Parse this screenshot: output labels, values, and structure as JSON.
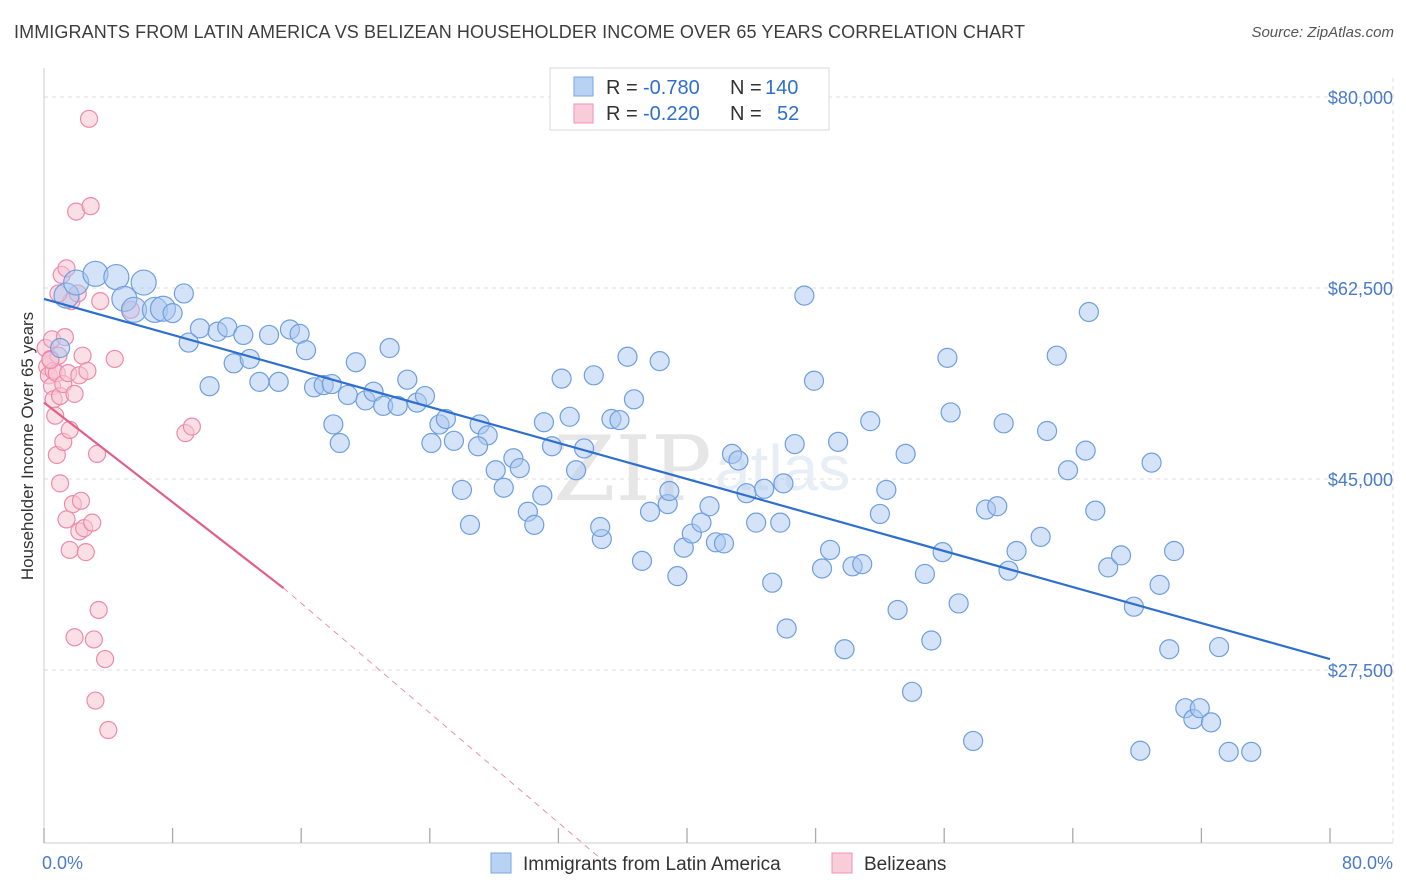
{
  "title": "IMMIGRANTS FROM LATIN AMERICA VS BELIZEAN HOUSEHOLDER INCOME OVER 65 YEARS CORRELATION CHART",
  "source": "Source: ZipAtlas.com",
  "watermark": {
    "zip": "ZIP",
    "atlas": "atlas"
  },
  "legend_top": {
    "rows": [
      {
        "r_label": "R = ",
        "r_value": "-0.780",
        "n_label": "N = ",
        "n_value": "140",
        "color": "#8ab4ea"
      },
      {
        "r_label": "R = ",
        "r_value": "-0.220",
        "n_label": "N = ",
        "n_value": "52",
        "color": "#f4a8c0"
      }
    ]
  },
  "legend_bottom": [
    {
      "label": "Immigrants from Latin America",
      "color": "#8ab4ea"
    },
    {
      "label": "Belizeans",
      "color": "#f4a8c0"
    }
  ],
  "colors": {
    "blue_fill": "#a9c8f0",
    "blue_stroke": "#6f9fe0",
    "blue_line": "#2f6fcc",
    "pink_fill": "#f8c4d4",
    "pink_stroke": "#ee8aab",
    "pink_line": "#e0608a",
    "grid": "#dddddd",
    "tick_text": "#4a7bc8"
  },
  "chart_data": {
    "type": "scatter",
    "title": "IMMIGRANTS FROM LATIN AMERICA VS BELIZEAN HOUSEHOLDER INCOME OVER 65 YEARS CORRELATION CHART",
    "xlabel": "",
    "ylabel": "Householder Income Over 65 years",
    "xlim": [
      0,
      80
    ],
    "ylim": [
      10000,
      82500
    ],
    "x_ticks": [
      {
        "value": 0,
        "label": "0.0%"
      },
      {
        "value": 80,
        "label": "80.0%"
      }
    ],
    "y_ticks": [
      {
        "value": 80000,
        "label": "$80,000"
      },
      {
        "value": 62500,
        "label": "$62,500"
      },
      {
        "value": 45000,
        "label": "$45,000"
      },
      {
        "value": 27500,
        "label": "$27,500"
      }
    ],
    "grid": true,
    "legend_position": "top-center",
    "series": [
      {
        "name": "Immigrants from Latin America",
        "r": -0.78,
        "n": 140,
        "trend": {
          "x": [
            0,
            80
          ],
          "y": [
            61500,
            28500
          ]
        },
        "points": [
          [
            1.0,
            57.0
          ],
          [
            1.4,
            61.8
          ],
          [
            2.0,
            63.0
          ],
          [
            3.2,
            63.8
          ],
          [
            4.5,
            63.5
          ],
          [
            5.0,
            61.5
          ],
          [
            5.6,
            60.5
          ],
          [
            6.2,
            63.0
          ],
          [
            6.9,
            60.5
          ],
          [
            7.4,
            60.6
          ],
          [
            8.0,
            60.2
          ],
          [
            8.7,
            62.0
          ],
          [
            9.0,
            57.5
          ],
          [
            9.7,
            58.8
          ],
          [
            10.3,
            53.5
          ],
          [
            10.8,
            58.5
          ],
          [
            11.4,
            58.9
          ],
          [
            11.8,
            55.6
          ],
          [
            12.4,
            58.2
          ],
          [
            12.8,
            56.0
          ],
          [
            13.4,
            53.9
          ],
          [
            14.0,
            58.2
          ],
          [
            14.6,
            53.9
          ],
          [
            15.3,
            58.7
          ],
          [
            15.9,
            58.3
          ],
          [
            16.3,
            56.8
          ],
          [
            16.8,
            53.4
          ],
          [
            17.4,
            53.6
          ],
          [
            17.9,
            53.7
          ],
          [
            18.0,
            50.0
          ],
          [
            18.4,
            48.3
          ],
          [
            18.9,
            52.7
          ],
          [
            19.4,
            55.7
          ],
          [
            20.0,
            52.2
          ],
          [
            20.5,
            53.0
          ],
          [
            21.1,
            51.7
          ],
          [
            21.5,
            57.0
          ],
          [
            22.0,
            51.7
          ],
          [
            22.6,
            54.1
          ],
          [
            23.2,
            52.0
          ],
          [
            23.7,
            52.6
          ],
          [
            24.1,
            48.3
          ],
          [
            24.6,
            50.0
          ],
          [
            25.0,
            50.5
          ],
          [
            25.5,
            48.5
          ],
          [
            26.0,
            44.0
          ],
          [
            26.5,
            40.8
          ],
          [
            27.1,
            50.0
          ],
          [
            27.6,
            49.0
          ],
          [
            28.1,
            45.8
          ],
          [
            28.6,
            44.2
          ],
          [
            29.2,
            46.9
          ],
          [
            29.6,
            46.0
          ],
          [
            30.1,
            42.0
          ],
          [
            30.5,
            40.8
          ],
          [
            31.0,
            43.5
          ],
          [
            31.6,
            48.0
          ],
          [
            32.2,
            54.2
          ],
          [
            32.7,
            50.7
          ],
          [
            33.1,
            45.8
          ],
          [
            33.6,
            47.8
          ],
          [
            34.2,
            54.5
          ],
          [
            34.7,
            39.5
          ],
          [
            35.3,
            50.5
          ],
          [
            35.8,
            50.4
          ],
          [
            36.3,
            56.2
          ],
          [
            36.7,
            52.3
          ],
          [
            37.2,
            37.5
          ],
          [
            37.7,
            42.0
          ],
          [
            38.3,
            55.8
          ],
          [
            38.8,
            42.7
          ],
          [
            39.4,
            36.1
          ],
          [
            39.8,
            38.7
          ],
          [
            40.3,
            40.0
          ],
          [
            40.9,
            41.0
          ],
          [
            41.4,
            42.5
          ],
          [
            41.8,
            39.2
          ],
          [
            42.3,
            39.1
          ],
          [
            42.8,
            47.3
          ],
          [
            43.2,
            46.7
          ],
          [
            43.7,
            43.7
          ],
          [
            44.3,
            41.0
          ],
          [
            44.8,
            44.1
          ],
          [
            45.3,
            35.5
          ],
          [
            45.8,
            41.0
          ],
          [
            46.2,
            31.3
          ],
          [
            46.7,
            48.2
          ],
          [
            47.3,
            61.8
          ],
          [
            47.9,
            54.0
          ],
          [
            48.4,
            36.8
          ],
          [
            48.9,
            38.5
          ],
          [
            49.4,
            48.4
          ],
          [
            49.8,
            29.4
          ],
          [
            50.3,
            37.0
          ],
          [
            50.9,
            37.2
          ],
          [
            51.4,
            50.3
          ],
          [
            52.0,
            41.8
          ],
          [
            52.4,
            44.0
          ],
          [
            53.1,
            33.0
          ],
          [
            54.0,
            25.5
          ],
          [
            54.8,
            36.3
          ],
          [
            55.2,
            30.2
          ],
          [
            55.9,
            38.3
          ],
          [
            56.4,
            51.1
          ],
          [
            56.2,
            56.1
          ],
          [
            56.9,
            33.6
          ],
          [
            57.8,
            21.0
          ],
          [
            58.6,
            42.2
          ],
          [
            59.3,
            42.5
          ],
          [
            60.0,
            36.6
          ],
          [
            60.5,
            38.4
          ],
          [
            62.0,
            39.7
          ],
          [
            62.4,
            49.4
          ],
          [
            63.0,
            56.3
          ],
          [
            63.7,
            45.8
          ],
          [
            65.0,
            60.3
          ],
          [
            64.8,
            47.6
          ],
          [
            65.4,
            42.1
          ],
          [
            66.2,
            36.9
          ],
          [
            67.0,
            38.0
          ],
          [
            67.8,
            33.3
          ],
          [
            68.2,
            20.1
          ],
          [
            68.9,
            46.5
          ],
          [
            69.4,
            35.3
          ],
          [
            70.0,
            29.4
          ],
          [
            70.3,
            38.4
          ],
          [
            71.0,
            24.0
          ],
          [
            71.5,
            23.0
          ],
          [
            71.9,
            24.0
          ],
          [
            72.6,
            22.7
          ],
          [
            73.1,
            29.6
          ],
          [
            73.7,
            20.0
          ],
          [
            75.1,
            20.0
          ],
          [
            59.7,
            50.1
          ],
          [
            53.6,
            47.3
          ],
          [
            46.0,
            44.6
          ],
          [
            38.9,
            43.9
          ],
          [
            34.6,
            40.6
          ],
          [
            31.1,
            50.2
          ],
          [
            27.0,
            48.0
          ]
        ]
      },
      {
        "name": "Belizeans",
        "r": -0.22,
        "n": 52,
        "trend": {
          "x": [
            0,
            14.9
          ],
          "y": [
            52000,
            35000
          ]
        },
        "trend_dashed": {
          "x": [
            14.9,
            34.8
          ],
          "y": [
            35000,
            10000
          ]
        },
        "points": [
          [
            0.1,
            57.0
          ],
          [
            0.2,
            55.3
          ],
          [
            0.3,
            54.5
          ],
          [
            0.4,
            56.0
          ],
          [
            0.5,
            57.8
          ],
          [
            0.5,
            53.5
          ],
          [
            0.6,
            52.3
          ],
          [
            0.6,
            54.9
          ],
          [
            0.7,
            50.8
          ],
          [
            0.8,
            54.7
          ],
          [
            0.8,
            47.2
          ],
          [
            0.9,
            56.3
          ],
          [
            1.0,
            52.6
          ],
          [
            1.0,
            44.6
          ],
          [
            1.1,
            63.7
          ],
          [
            1.2,
            53.7
          ],
          [
            1.2,
            48.4
          ],
          [
            1.3,
            58.0
          ],
          [
            1.4,
            41.3
          ],
          [
            1.4,
            64.3
          ],
          [
            1.5,
            54.7
          ],
          [
            1.6,
            38.5
          ],
          [
            1.6,
            49.5
          ],
          [
            1.7,
            61.3
          ],
          [
            1.8,
            42.7
          ],
          [
            1.9,
            52.8
          ],
          [
            1.9,
            30.5
          ],
          [
            2.0,
            69.5
          ],
          [
            2.1,
            62.0
          ],
          [
            2.2,
            54.5
          ],
          [
            2.2,
            40.2
          ],
          [
            2.3,
            43.0
          ],
          [
            2.4,
            56.3
          ],
          [
            2.5,
            40.5
          ],
          [
            2.6,
            38.3
          ],
          [
            2.7,
            54.9
          ],
          [
            2.8,
            78.0
          ],
          [
            2.9,
            70.0
          ],
          [
            3.0,
            41.0
          ],
          [
            3.1,
            30.3
          ],
          [
            3.2,
            24.7
          ],
          [
            3.3,
            47.3
          ],
          [
            3.4,
            33.0
          ],
          [
            3.5,
            61.3
          ],
          [
            3.8,
            28.5
          ],
          [
            4.0,
            22.0
          ],
          [
            4.4,
            56.0
          ],
          [
            5.4,
            60.5
          ],
          [
            8.8,
            49.2
          ],
          [
            9.2,
            49.8
          ],
          [
            0.9,
            62.0
          ],
          [
            0.4,
            55.9
          ]
        ]
      }
    ]
  }
}
